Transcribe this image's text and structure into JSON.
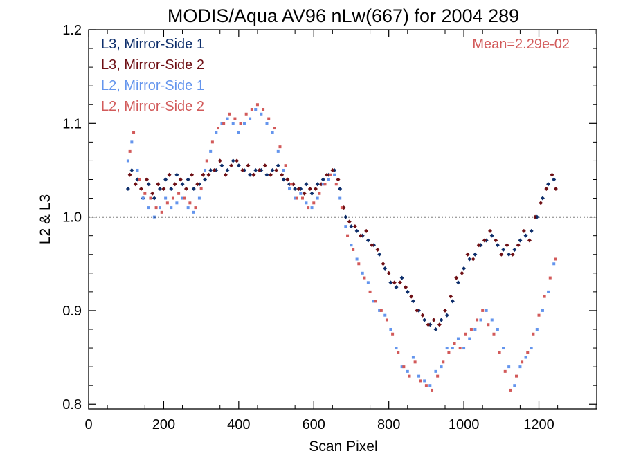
{
  "chart_data": {
    "type": "scatter",
    "title": "MODIS/Aqua AV96 nLw(667) for 2004 289",
    "xlabel": "Scan Pixel",
    "ylabel": "L2 & L3",
    "xlim": [
      0,
      1354
    ],
    "ylim": [
      0.795,
      1.2
    ],
    "xticks": [
      0,
      200,
      400,
      600,
      800,
      1000,
      1200
    ],
    "xtick_labels": [
      "0",
      "200",
      "400",
      "600",
      "800",
      "1000",
      "1200"
    ],
    "yticks": [
      0.8,
      0.9,
      1.0,
      1.1,
      1.2
    ],
    "ytick_labels": [
      "0.8",
      "0.9",
      "1.0",
      "1.1",
      "1.2"
    ],
    "reference_line": 1.0,
    "annotation": "Mean=2.29e-02",
    "annotation_color": "#d25a5a",
    "grid": false,
    "legend_position": "top-left",
    "series": [
      {
        "name": "L3, Mirror-Side 1",
        "color": "#0d2e6b",
        "marker": "diamond",
        "points": [
          [
            105,
            1.03
          ],
          [
            115,
            1.05
          ],
          [
            130,
            1.04
          ],
          [
            145,
            1.02
          ],
          [
            160,
            1.035
          ],
          [
            175,
            1.02
          ],
          [
            190,
            1.03
          ],
          [
            205,
            1.04
          ],
          [
            220,
            1.03
          ],
          [
            235,
            1.045
          ],
          [
            250,
            1.035
          ],
          [
            265,
            1.04
          ],
          [
            280,
            1.03
          ],
          [
            295,
            1.035
          ],
          [
            310,
            1.04
          ],
          [
            325,
            1.05
          ],
          [
            340,
            1.05
          ],
          [
            355,
            1.055
          ],
          [
            370,
            1.05
          ],
          [
            385,
            1.06
          ],
          [
            400,
            1.055
          ],
          [
            415,
            1.05
          ],
          [
            430,
            1.045
          ],
          [
            445,
            1.05
          ],
          [
            460,
            1.05
          ],
          [
            475,
            1.045
          ],
          [
            490,
            1.05
          ],
          [
            505,
            1.055
          ],
          [
            520,
            1.04
          ],
          [
            535,
            1.035
          ],
          [
            550,
            1.03
          ],
          [
            565,
            1.03
          ],
          [
            580,
            1.035
          ],
          [
            595,
            1.025
          ],
          [
            610,
            1.035
          ],
          [
            625,
            1.04
          ],
          [
            640,
            1.045
          ],
          [
            655,
            1.05
          ],
          [
            670,
            1.03
          ],
          [
            685,
            1.0
          ],
          [
            700,
            0.99
          ],
          [
            715,
            0.985
          ],
          [
            730,
            0.98
          ],
          [
            745,
            0.975
          ],
          [
            760,
            0.97
          ],
          [
            775,
            0.96
          ],
          [
            790,
            0.945
          ],
          [
            805,
            0.93
          ],
          [
            820,
            0.925
          ],
          [
            835,
            0.935
          ],
          [
            850,
            0.92
          ],
          [
            865,
            0.91
          ],
          [
            880,
            0.9
          ],
          [
            895,
            0.89
          ],
          [
            910,
            0.885
          ],
          [
            925,
            0.88
          ],
          [
            940,
            0.89
          ],
          [
            955,
            0.895
          ],
          [
            970,
            0.91
          ],
          [
            985,
            0.93
          ],
          [
            1000,
            0.945
          ],
          [
            1015,
            0.955
          ],
          [
            1030,
            0.96
          ],
          [
            1045,
            0.97
          ],
          [
            1060,
            0.975
          ],
          [
            1075,
            0.98
          ],
          [
            1090,
            0.97
          ],
          [
            1105,
            0.965
          ],
          [
            1120,
            0.96
          ],
          [
            1135,
            0.965
          ],
          [
            1150,
            0.975
          ],
          [
            1165,
            0.98
          ],
          [
            1180,
            0.985
          ],
          [
            1195,
            1.0
          ],
          [
            1210,
            1.02
          ],
          [
            1225,
            1.035
          ],
          [
            1240,
            1.04
          ]
        ]
      },
      {
        "name": "L3, Mirror-Side 2",
        "color": "#6e0f14",
        "marker": "diamond",
        "points": [
          [
            110,
            1.045
          ],
          [
            125,
            1.035
          ],
          [
            140,
            1.03
          ],
          [
            155,
            1.04
          ],
          [
            170,
            1.025
          ],
          [
            185,
            1.035
          ],
          [
            200,
            1.03
          ],
          [
            215,
            1.045
          ],
          [
            230,
            1.035
          ],
          [
            245,
            1.04
          ],
          [
            260,
            1.03
          ],
          [
            275,
            1.045
          ],
          [
            290,
            1.035
          ],
          [
            305,
            1.045
          ],
          [
            320,
            1.045
          ],
          [
            335,
            1.05
          ],
          [
            350,
            1.06
          ],
          [
            365,
            1.045
          ],
          [
            380,
            1.055
          ],
          [
            395,
            1.06
          ],
          [
            410,
            1.05
          ],
          [
            425,
            1.055
          ],
          [
            440,
            1.045
          ],
          [
            455,
            1.05
          ],
          [
            470,
            1.055
          ],
          [
            485,
            1.045
          ],
          [
            500,
            1.05
          ],
          [
            515,
            1.045
          ],
          [
            530,
            1.04
          ],
          [
            545,
            1.035
          ],
          [
            560,
            1.03
          ],
          [
            575,
            1.025
          ],
          [
            590,
            1.03
          ],
          [
            605,
            1.03
          ],
          [
            620,
            1.035
          ],
          [
            635,
            1.045
          ],
          [
            650,
            1.05
          ],
          [
            665,
            1.04
          ],
          [
            680,
            1.01
          ],
          [
            695,
            0.995
          ],
          [
            710,
            0.99
          ],
          [
            725,
            0.98
          ],
          [
            740,
            0.985
          ],
          [
            755,
            0.97
          ],
          [
            770,
            0.965
          ],
          [
            785,
            0.95
          ],
          [
            800,
            0.94
          ],
          [
            815,
            0.93
          ],
          [
            830,
            0.93
          ],
          [
            845,
            0.925
          ],
          [
            860,
            0.915
          ],
          [
            875,
            0.9
          ],
          [
            890,
            0.895
          ],
          [
            905,
            0.885
          ],
          [
            920,
            0.89
          ],
          [
            935,
            0.885
          ],
          [
            950,
            0.9
          ],
          [
            965,
            0.915
          ],
          [
            980,
            0.935
          ],
          [
            995,
            0.94
          ],
          [
            1010,
            0.96
          ],
          [
            1025,
            0.955
          ],
          [
            1040,
            0.97
          ],
          [
            1055,
            0.975
          ],
          [
            1070,
            0.985
          ],
          [
            1085,
            0.975
          ],
          [
            1100,
            0.96
          ],
          [
            1115,
            0.97
          ],
          [
            1130,
            0.96
          ],
          [
            1145,
            0.97
          ],
          [
            1160,
            0.985
          ],
          [
            1175,
            0.975
          ],
          [
            1190,
            1.0
          ],
          [
            1205,
            1.015
          ],
          [
            1220,
            1.03
          ],
          [
            1235,
            1.045
          ],
          [
            1245,
            1.03
          ]
        ]
      },
      {
        "name": "L2, Mirror-Side 1",
        "color": "#6495ed",
        "marker": "square",
        "points": [
          [
            105,
            1.06
          ],
          [
            115,
            1.08
          ],
          [
            130,
            1.05
          ],
          [
            145,
            1.02
          ],
          [
            160,
            1.01
          ],
          [
            175,
            1.0
          ],
          [
            190,
            1.01
          ],
          [
            205,
            1.02
          ],
          [
            220,
            1.01
          ],
          [
            235,
            1.015
          ],
          [
            250,
            1.02
          ],
          [
            265,
            1.01
          ],
          [
            280,
            1.005
          ],
          [
            295,
            1.02
          ],
          [
            310,
            1.05
          ],
          [
            325,
            1.07
          ],
          [
            340,
            1.09
          ],
          [
            355,
            1.1
          ],
          [
            370,
            1.105
          ],
          [
            385,
            1.1
          ],
          [
            400,
            1.09
          ],
          [
            415,
            1.1
          ],
          [
            430,
            1.105
          ],
          [
            445,
            1.115
          ],
          [
            460,
            1.11
          ],
          [
            475,
            1.1
          ],
          [
            490,
            1.09
          ],
          [
            505,
            1.07
          ],
          [
            520,
            1.05
          ],
          [
            535,
            1.03
          ],
          [
            550,
            1.02
          ],
          [
            565,
            1.025
          ],
          [
            580,
            1.015
          ],
          [
            595,
            1.01
          ],
          [
            610,
            1.02
          ],
          [
            625,
            1.035
          ],
          [
            640,
            1.04
          ],
          [
            655,
            1.045
          ],
          [
            670,
            1.02
          ],
          [
            685,
            0.99
          ],
          [
            700,
            0.97
          ],
          [
            715,
            0.955
          ],
          [
            730,
            0.94
          ],
          [
            745,
            0.93
          ],
          [
            760,
            0.91
          ],
          [
            775,
            0.9
          ],
          [
            790,
            0.895
          ],
          [
            805,
            0.88
          ],
          [
            820,
            0.86
          ],
          [
            835,
            0.84
          ],
          [
            850,
            0.835
          ],
          [
            865,
            0.85
          ],
          [
            880,
            0.83
          ],
          [
            895,
            0.825
          ],
          [
            910,
            0.82
          ],
          [
            925,
            0.835
          ],
          [
            940,
            0.84
          ],
          [
            955,
            0.86
          ],
          [
            970,
            0.86
          ],
          [
            985,
            0.87
          ],
          [
            1000,
            0.86
          ],
          [
            1015,
            0.87
          ],
          [
            1030,
            0.88
          ],
          [
            1045,
            0.89
          ],
          [
            1060,
            0.9
          ],
          [
            1075,
            0.89
          ],
          [
            1090,
            0.88
          ],
          [
            1105,
            0.86
          ],
          [
            1120,
            0.84
          ],
          [
            1135,
            0.82
          ],
          [
            1150,
            0.84
          ],
          [
            1165,
            0.85
          ],
          [
            1180,
            0.86
          ],
          [
            1195,
            0.88
          ],
          [
            1210,
            0.9
          ],
          [
            1225,
            0.92
          ],
          [
            1240,
            0.95
          ]
        ]
      },
      {
        "name": "L2, Mirror-Side 2",
        "color": "#d25a5a",
        "marker": "square",
        "points": [
          [
            110,
            1.07
          ],
          [
            120,
            1.09
          ],
          [
            135,
            1.04
          ],
          [
            150,
            1.025
          ],
          [
            165,
            1.02
          ],
          [
            180,
            1.01
          ],
          [
            195,
            1.005
          ],
          [
            210,
            1.015
          ],
          [
            225,
            1.02
          ],
          [
            240,
            1.025
          ],
          [
            255,
            1.02
          ],
          [
            270,
            1.015
          ],
          [
            285,
            1.01
          ],
          [
            300,
            1.03
          ],
          [
            315,
            1.06
          ],
          [
            330,
            1.08
          ],
          [
            345,
            1.095
          ],
          [
            360,
            1.1
          ],
          [
            375,
            1.11
          ],
          [
            390,
            1.105
          ],
          [
            405,
            1.1
          ],
          [
            420,
            1.11
          ],
          [
            435,
            1.115
          ],
          [
            450,
            1.12
          ],
          [
            465,
            1.115
          ],
          [
            480,
            1.105
          ],
          [
            495,
            1.095
          ],
          [
            510,
            1.075
          ],
          [
            525,
            1.055
          ],
          [
            540,
            1.035
          ],
          [
            555,
            1.02
          ],
          [
            570,
            1.02
          ],
          [
            585,
            1.01
          ],
          [
            600,
            1.015
          ],
          [
            615,
            1.025
          ],
          [
            630,
            1.035
          ],
          [
            645,
            1.045
          ],
          [
            660,
            1.035
          ],
          [
            675,
            1.01
          ],
          [
            690,
            0.98
          ],
          [
            705,
            0.965
          ],
          [
            720,
            0.95
          ],
          [
            735,
            0.935
          ],
          [
            750,
            0.92
          ],
          [
            765,
            0.91
          ],
          [
            780,
            0.9
          ],
          [
            795,
            0.89
          ],
          [
            810,
            0.875
          ],
          [
            825,
            0.855
          ],
          [
            840,
            0.84
          ],
          [
            855,
            0.83
          ],
          [
            870,
            0.845
          ],
          [
            885,
            0.825
          ],
          [
            900,
            0.82
          ],
          [
            915,
            0.815
          ],
          [
            930,
            0.83
          ],
          [
            945,
            0.845
          ],
          [
            960,
            0.855
          ],
          [
            975,
            0.865
          ],
          [
            990,
            0.86
          ],
          [
            1005,
            0.875
          ],
          [
            1020,
            0.88
          ],
          [
            1035,
            0.89
          ],
          [
            1050,
            0.9
          ],
          [
            1065,
            0.885
          ],
          [
            1080,
            0.875
          ],
          [
            1095,
            0.855
          ],
          [
            1110,
            0.835
          ],
          [
            1125,
            0.815
          ],
          [
            1140,
            0.83
          ],
          [
            1155,
            0.845
          ],
          [
            1170,
            0.855
          ],
          [
            1185,
            0.875
          ],
          [
            1200,
            0.895
          ],
          [
            1215,
            0.915
          ],
          [
            1230,
            0.935
          ],
          [
            1245,
            0.955
          ]
        ]
      }
    ]
  }
}
